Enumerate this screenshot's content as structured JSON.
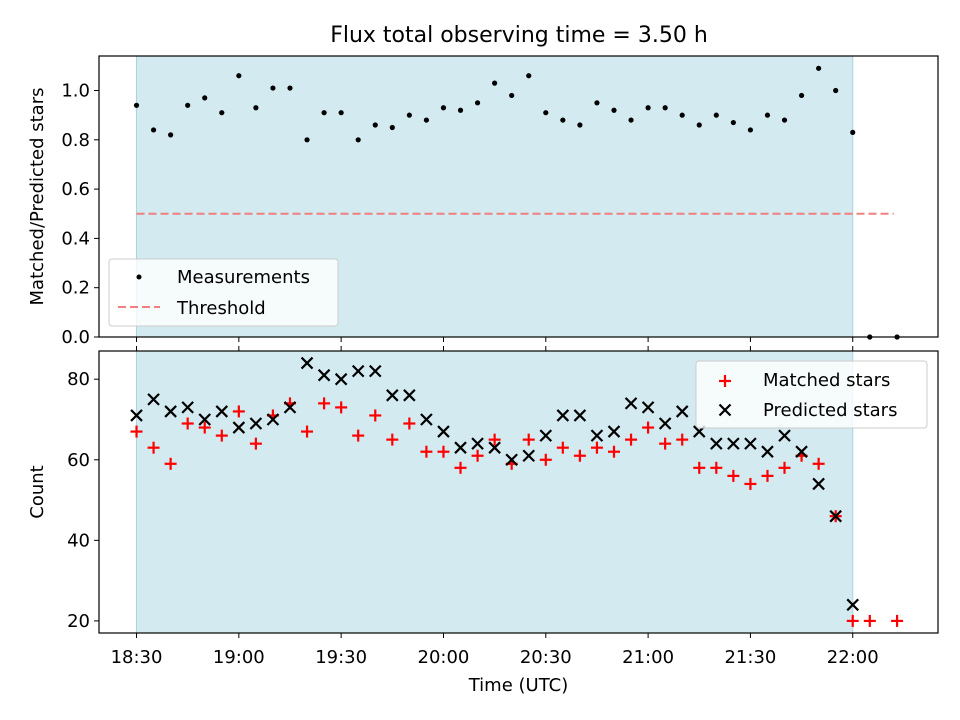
{
  "chart_data": [
    {
      "type": "scatter",
      "title": "Flux total observing time = 3.50 h",
      "xlabel": "",
      "ylabel": "Matched/Predicted stars",
      "ylim": [
        0,
        1.14
      ],
      "yticks": [
        "0.0",
        "0.2",
        "0.4",
        "0.6",
        "0.8",
        "1.0"
      ],
      "observing_window_minutes": [
        0,
        210
      ],
      "threshold": {
        "y": 0.5,
        "x_range_minutes": [
          0,
          222
        ],
        "color": "#f08080",
        "style": "dashed"
      },
      "legend": {
        "placement": "lower-left",
        "entries": [
          "Measurements",
          "Threshold"
        ]
      },
      "series": [
        {
          "name": "Measurements",
          "x_minutes": [
            0,
            5,
            10,
            15,
            20,
            25,
            30,
            35,
            40,
            45,
            50,
            55,
            60,
            65,
            70,
            75,
            80,
            85,
            90,
            95,
            100,
            105,
            110,
            115,
            120,
            125,
            130,
            135,
            140,
            145,
            150,
            155,
            160,
            165,
            170,
            175,
            180,
            185,
            190,
            195,
            200,
            205,
            210,
            215,
            223
          ],
          "y": [
            0.94,
            0.84,
            0.82,
            0.94,
            0.97,
            0.91,
            1.06,
            0.93,
            1.01,
            1.01,
            0.8,
            0.91,
            0.91,
            0.8,
            0.86,
            0.85,
            0.9,
            0.88,
            0.93,
            0.92,
            0.95,
            1.03,
            0.98,
            1.06,
            0.91,
            0.88,
            0.86,
            0.95,
            0.92,
            0.88,
            0.93,
            0.93,
            0.9,
            0.86,
            0.9,
            0.87,
            0.84,
            0.9,
            0.88,
            0.98,
            1.09,
            1.0,
            0.83,
            0.0,
            0.0
          ]
        }
      ]
    },
    {
      "type": "scatter",
      "xlabel": "Time (UTC)",
      "ylabel": "Count",
      "ylim": [
        17,
        87
      ],
      "yticks": [
        "20",
        "40",
        "60",
        "80"
      ],
      "xticks": [
        "18:30",
        "19:00",
        "19:30",
        "20:00",
        "20:30",
        "21:00",
        "21:30",
        "22:00"
      ],
      "xtick_minutes": [
        0,
        30,
        60,
        90,
        120,
        150,
        180,
        210
      ],
      "xlim_minutes": [
        -11,
        235
      ],
      "observing_window_minutes": [
        0,
        210
      ],
      "legend": {
        "placement": "top-right",
        "entries": [
          "Matched stars",
          "Predicted stars"
        ]
      },
      "series": [
        {
          "name": "Matched stars",
          "marker": "plus",
          "color": "#ff0000",
          "x_minutes": [
            0,
            5,
            10,
            15,
            20,
            25,
            30,
            35,
            40,
            45,
            50,
            55,
            60,
            65,
            70,
            75,
            80,
            85,
            90,
            95,
            100,
            105,
            110,
            115,
            120,
            125,
            130,
            135,
            140,
            145,
            150,
            155,
            160,
            165,
            170,
            175,
            180,
            185,
            190,
            195,
            200,
            205,
            210,
            215,
            223
          ],
          "y": [
            67,
            63,
            59,
            69,
            68,
            66,
            72,
            64,
            71,
            74,
            67,
            74,
            73,
            66,
            71,
            65,
            69,
            62,
            62,
            58,
            61,
            65,
            59,
            65,
            60,
            63,
            61,
            63,
            62,
            65,
            68,
            64,
            65,
            58,
            58,
            56,
            54,
            56,
            58,
            61,
            59,
            46,
            20,
            20,
            20
          ]
        },
        {
          "name": "Predicted stars",
          "marker": "x",
          "color": "#000000",
          "x_minutes": [
            0,
            5,
            10,
            15,
            20,
            25,
            30,
            35,
            40,
            45,
            50,
            55,
            60,
            65,
            70,
            75,
            80,
            85,
            90,
            95,
            100,
            105,
            110,
            115,
            120,
            125,
            130,
            135,
            140,
            145,
            150,
            155,
            160,
            165,
            170,
            175,
            180,
            185,
            190,
            195,
            200,
            205,
            210
          ],
          "y": [
            71,
            75,
            72,
            73,
            70,
            72,
            68,
            69,
            70,
            73,
            84,
            81,
            80,
            82,
            82,
            76,
            76,
            70,
            67,
            63,
            64,
            63,
            60,
            61,
            66,
            71,
            71,
            66,
            67,
            74,
            73,
            69,
            72,
            67,
            64,
            64,
            64,
            62,
            66,
            62,
            54,
            46,
            24
          ]
        }
      ]
    }
  ],
  "colors": {
    "observing_window": "#d3eaf0",
    "threshold": "#f08080"
  }
}
